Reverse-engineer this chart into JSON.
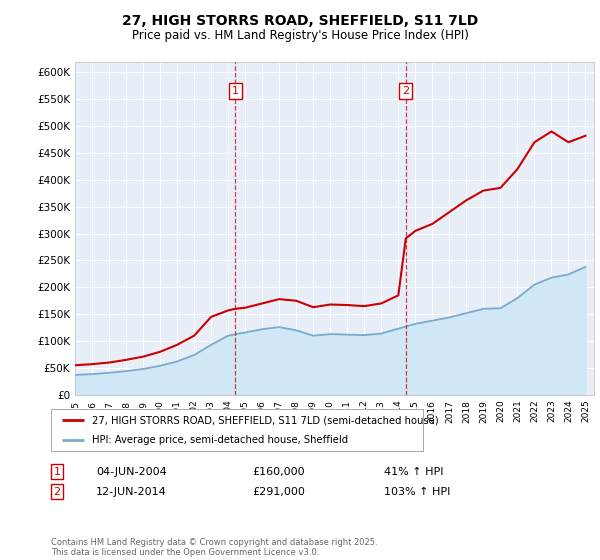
{
  "title": "27, HIGH STORRS ROAD, SHEFFIELD, S11 7LD",
  "subtitle": "Price paid vs. HM Land Registry's House Price Index (HPI)",
  "ytick_values": [
    0,
    50000,
    100000,
    150000,
    200000,
    250000,
    300000,
    350000,
    400000,
    450000,
    500000,
    550000,
    600000
  ],
  "xmin": 1995,
  "xmax": 2025.5,
  "ymin": 0,
  "ymax": 620000,
  "vline1_x": 2004.42,
  "vline2_x": 2014.44,
  "legend_line1": "27, HIGH STORRS ROAD, SHEFFIELD, S11 7LD (semi-detached house)",
  "legend_line2": "HPI: Average price, semi-detached house, Sheffield",
  "table_row1": [
    "1",
    "04-JUN-2004",
    "£160,000",
    "41% ↑ HPI"
  ],
  "table_row2": [
    "2",
    "12-JUN-2014",
    "£291,000",
    "103% ↑ HPI"
  ],
  "footnote": "Contains HM Land Registry data © Crown copyright and database right 2025.\nThis data is licensed under the Open Government Licence v3.0.",
  "red_color": "#cc0000",
  "blue_color": "#7aaacc",
  "blue_fill": "#d0e8f5",
  "background_color": "#e8eef8",
  "grid_color": "#ffffff",
  "hpi_years": [
    1995,
    1996,
    1997,
    1998,
    1999,
    2000,
    2001,
    2002,
    2003,
    2004,
    2005,
    2006,
    2007,
    2008,
    2009,
    2010,
    2011,
    2012,
    2013,
    2014,
    2015,
    2016,
    2017,
    2018,
    2019,
    2020,
    2021,
    2022,
    2023,
    2024,
    2025
  ],
  "hpi_values": [
    37000,
    38500,
    41000,
    44000,
    48000,
    54000,
    62000,
    74000,
    93000,
    110000,
    116000,
    122000,
    126000,
    120000,
    110000,
    113000,
    112000,
    111000,
    114000,
    123000,
    132000,
    138000,
    144000,
    152000,
    160000,
    161000,
    180000,
    205000,
    218000,
    224000,
    238000
  ],
  "prop_years": [
    1995,
    1996,
    1997,
    1998,
    1999,
    2000,
    2001,
    2002,
    2003,
    2004,
    2004.42,
    2005,
    2006,
    2007,
    2008,
    2009,
    2010,
    2011,
    2012,
    2013,
    2014,
    2014.44,
    2015,
    2016,
    2017,
    2018,
    2019,
    2020,
    2021,
    2022,
    2023,
    2024,
    2025
  ],
  "prop_values": [
    55000,
    57000,
    60000,
    65000,
    71000,
    80000,
    93000,
    110000,
    145000,
    157000,
    160000,
    162000,
    170000,
    178000,
    175000,
    163000,
    168000,
    167000,
    165000,
    170000,
    185000,
    291000,
    305000,
    318000,
    340000,
    362000,
    380000,
    385000,
    420000,
    470000,
    490000,
    470000,
    482000
  ]
}
